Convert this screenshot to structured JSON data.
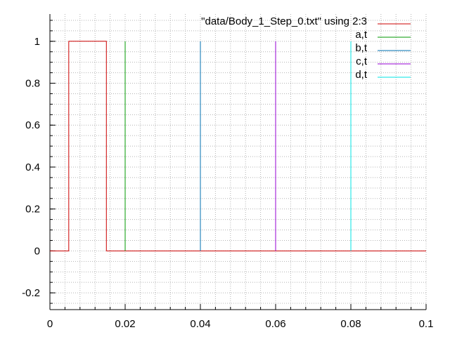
{
  "chart_data": {
    "type": "line",
    "title": "",
    "xlabel": "",
    "ylabel": "",
    "xlim": [
      0,
      0.1
    ],
    "ylim": [
      -0.28,
      1.13
    ],
    "grid": true,
    "legend_position": "top-right",
    "x_ticks": [
      {
        "value": 0,
        "label": "0"
      },
      {
        "value": 0.02,
        "label": "0.02"
      },
      {
        "value": 0.04,
        "label": "0.04"
      },
      {
        "value": 0.06,
        "label": "0.06"
      },
      {
        "value": 0.08,
        "label": "0.08"
      },
      {
        "value": 0.1,
        "label": "0.1"
      }
    ],
    "y_ticks": [
      {
        "value": -0.2,
        "label": "-0.2"
      },
      {
        "value": 0,
        "label": "0"
      },
      {
        "value": 0.2,
        "label": "0.2"
      },
      {
        "value": 0.4,
        "label": "0.4"
      },
      {
        "value": 0.6,
        "label": "0.6"
      },
      {
        "value": 0.8,
        "label": "0.8"
      },
      {
        "value": 1,
        "label": "1"
      }
    ],
    "series": [
      {
        "name": "\"data/Body_1_Step_0.txt\" using 2:3",
        "color": "#cc0000",
        "points": [
          [
            0,
            0
          ],
          [
            0.005,
            0
          ],
          [
            0.005,
            1
          ],
          [
            0.015,
            1
          ],
          [
            0.015,
            0
          ],
          [
            0.1,
            0
          ]
        ]
      },
      {
        "name": "a,t",
        "color": "#009900",
        "points": [
          [
            0.02,
            0
          ],
          [
            0.02,
            1
          ]
        ]
      },
      {
        "name": "b,t",
        "color": "#0072b2",
        "points": [
          [
            0.04,
            0
          ],
          [
            0.04,
            1
          ]
        ]
      },
      {
        "name": "c,t",
        "color": "#9400d3",
        "points": [
          [
            0.06,
            0
          ],
          [
            0.06,
            1
          ]
        ]
      },
      {
        "name": "d,t",
        "color": "#00e5e5",
        "points": [
          [
            0.08,
            0
          ],
          [
            0.08,
            1
          ]
        ]
      }
    ]
  }
}
